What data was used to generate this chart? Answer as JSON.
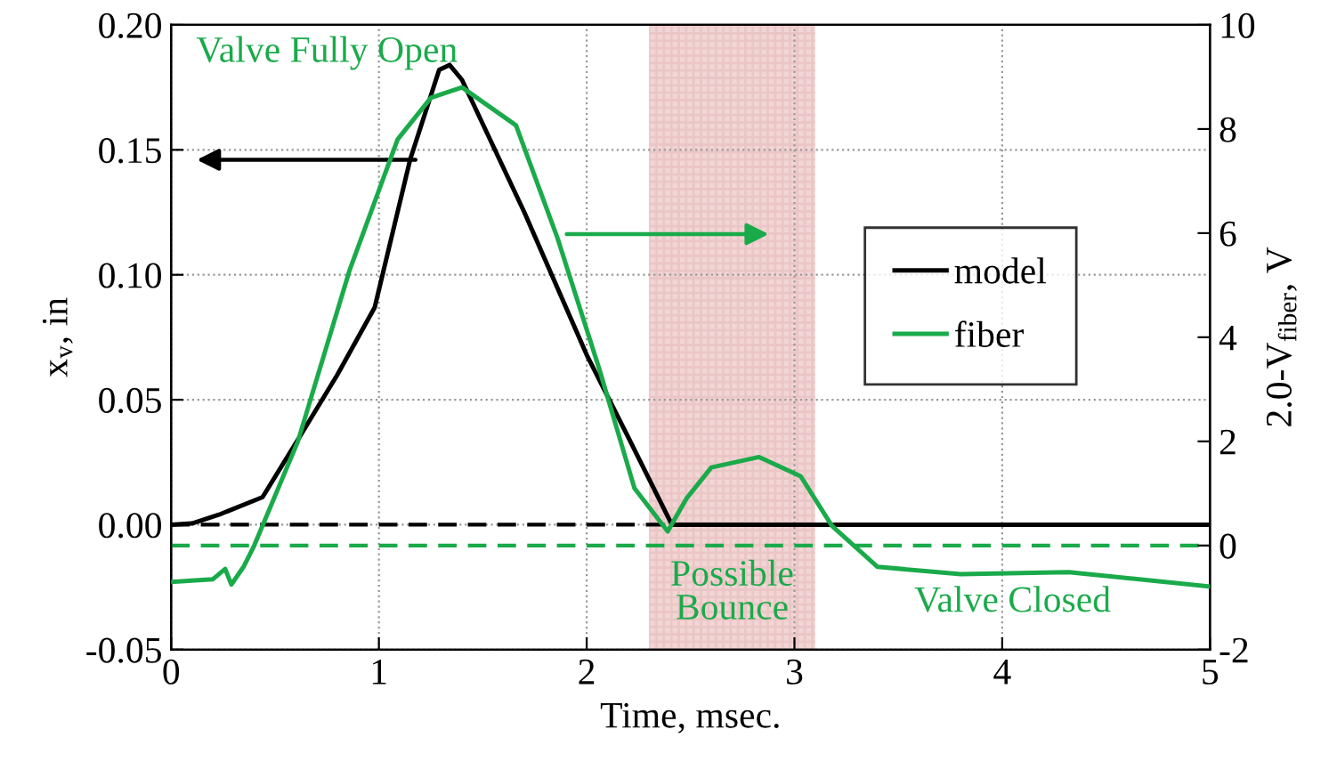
{
  "chart_data": {
    "type": "line",
    "xlabel": "Time, msec.",
    "ylabel": "x$_{v}$, in",
    "y2label": "2.0-V$_{fiber}$, V",
    "series": [
      {
        "name": "model",
        "color": "#000000",
        "x": [
          0,
          0.1,
          0.23,
          0.44,
          0.61,
          0.8,
          0.98,
          1.15,
          1.29,
          1.34,
          1.4,
          1.7,
          2.0,
          2.2,
          2.41,
          2.6,
          3.0,
          4.0,
          5.0
        ],
        "values": [
          0,
          0.0005,
          0.004,
          0.011,
          0.034,
          0.06,
          0.087,
          0.146,
          0.182,
          0.184,
          0.178,
          0.125,
          0.068,
          0.035,
          0,
          0,
          0,
          0,
          0
        ]
      },
      {
        "name": "fiber",
        "color": "#1aaa4a",
        "axis": "y2",
        "x": [
          0,
          0.2,
          0.26,
          0.29,
          0.35,
          0.4,
          0.61,
          0.86,
          1.09,
          1.25,
          1.4,
          1.66,
          1.86,
          2.06,
          2.23,
          2.39,
          2.48,
          2.6,
          2.83,
          3.03,
          3.18,
          3.4,
          3.8,
          4.32,
          5.0
        ],
        "values": [
          -0.7,
          -0.65,
          -0.45,
          -0.75,
          -0.4,
          0.0,
          2.0,
          5.3,
          7.8,
          8.6,
          8.8,
          8.07,
          5.9,
          3.4,
          1.1,
          0.27,
          0.9,
          1.5,
          1.7,
          1.33,
          0.38,
          -0.41,
          -0.55,
          -0.51,
          -0.79
        ]
      }
    ],
    "xlim": [
      0,
      5
    ],
    "xticks": [
      0,
      1,
      2,
      3,
      4,
      5
    ],
    "ylim": [
      -0.05,
      0.2
    ],
    "yticks": [
      {
        "value": -0.05,
        "label": "-0.05"
      },
      {
        "value": 0,
        "label": "0.00"
      },
      {
        "value": 0.05,
        "label": "0.05"
      },
      {
        "value": 0.1,
        "label": "0.10"
      },
      {
        "value": 0.15,
        "label": "0.15"
      },
      {
        "value": 0.2,
        "label": "0.20"
      }
    ],
    "y2lim": [
      -2,
      10
    ],
    "y2ticks": [
      -2,
      0,
      2,
      4,
      6,
      8,
      10
    ],
    "ref_lines": [
      {
        "axis": "y",
        "value": 0,
        "color": "#000000",
        "line_style": "dashed"
      },
      {
        "axis": "y2",
        "value": 0,
        "color": "#1aaa4a",
        "line_style": "dashed"
      }
    ],
    "bands": [
      {
        "axis": "x",
        "from": 2.3,
        "to": 3.1,
        "color": "#e7b3b3"
      }
    ],
    "annotations": [
      "Valve Fully Open",
      "Possible\nBounce",
      "Valve Closed"
    ],
    "grid": true,
    "legend": "right",
    "line_style": "solid",
    "marker": "none"
  }
}
